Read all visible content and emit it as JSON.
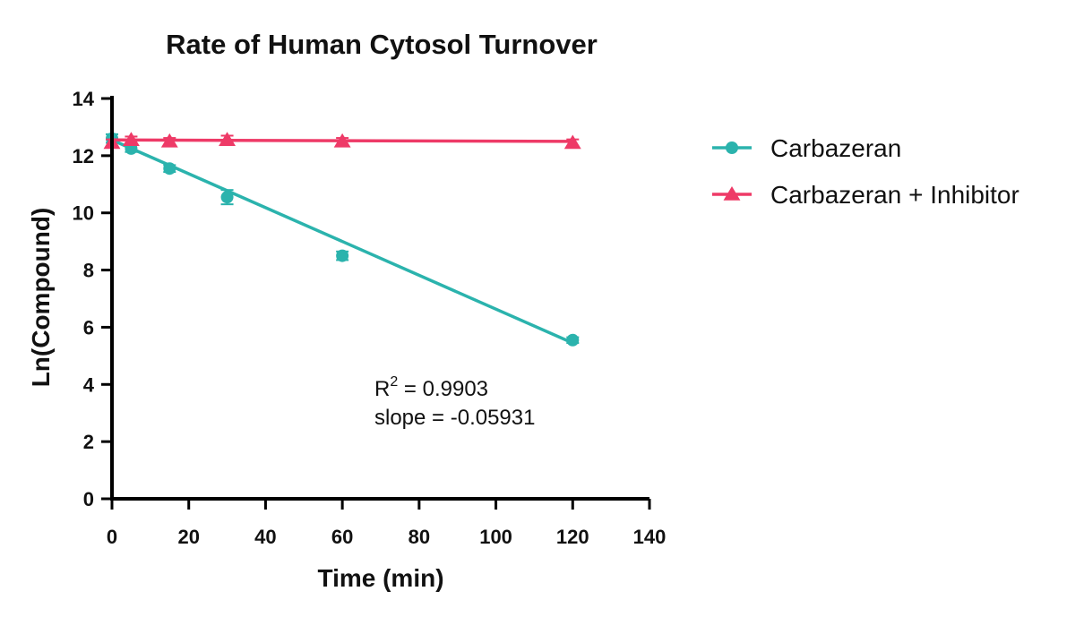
{
  "chart_data": {
    "type": "scatter",
    "title": "Rate of Human Cytosol Turnover",
    "xlabel": "Time (min)",
    "ylabel": "Ln(Compound)",
    "xlim": [
      0,
      140
    ],
    "ylim": [
      0,
      14
    ],
    "xticks": [
      0,
      20,
      40,
      60,
      80,
      100,
      120,
      140
    ],
    "yticks": [
      0,
      2,
      4,
      6,
      8,
      10,
      12,
      14
    ],
    "grid": false,
    "legend_position": "right",
    "series": [
      {
        "name": "Carbazeran",
        "marker": "circle",
        "color": "#2bb3ad",
        "points": [
          {
            "x": 0,
            "y": 12.6,
            "err": 0.15
          },
          {
            "x": 5,
            "y": 12.25,
            "err": 0.12
          },
          {
            "x": 15,
            "y": 11.55,
            "err": 0.12
          },
          {
            "x": 30,
            "y": 10.55,
            "err": 0.25
          },
          {
            "x": 60,
            "y": 8.5,
            "err": 0.15
          },
          {
            "x": 120,
            "y": 5.55,
            "err": 0.1
          }
        ],
        "fit": {
          "x": [
            0,
            120
          ],
          "y": [
            12.55,
            5.45
          ]
        }
      },
      {
        "name": "Carbazeran + Inhibitor",
        "marker": "triangle",
        "color": "#ee3a67",
        "points": [
          {
            "x": 0,
            "y": 12.45,
            "err": 0.12
          },
          {
            "x": 5,
            "y": 12.55,
            "err": 0.12
          },
          {
            "x": 15,
            "y": 12.5,
            "err": 0.12
          },
          {
            "x": 30,
            "y": 12.55,
            "err": 0.15
          },
          {
            "x": 60,
            "y": 12.5,
            "err": 0.12
          },
          {
            "x": 120,
            "y": 12.45,
            "err": 0.12
          }
        ],
        "fit": {
          "x": [
            0,
            120
          ],
          "y": [
            12.55,
            12.5
          ]
        }
      }
    ],
    "annotations": {
      "r2_base": "R",
      "r2_sup": "2",
      "r2_value": " = 0.9903",
      "slope": "slope = -0.05931"
    }
  }
}
